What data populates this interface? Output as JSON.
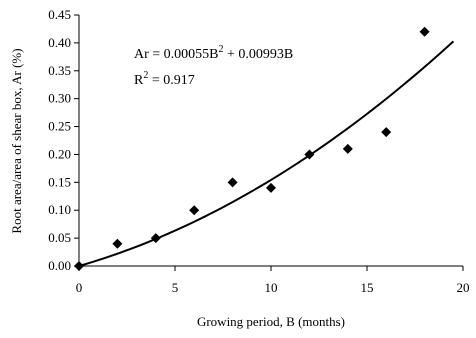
{
  "chart_data": {
    "type": "scatter",
    "xlabel": "Growing period, B (months)",
    "ylabel": "Root area/area of shear box, Ar (%)",
    "xlim": [
      0,
      20
    ],
    "ylim": [
      0,
      0.45
    ],
    "x_ticks": [
      "0",
      "5",
      "10",
      "15",
      "20"
    ],
    "y_ticks": [
      "0.00",
      "0.05",
      "0.10",
      "0.15",
      "0.20",
      "0.25",
      "0.30",
      "0.35",
      "0.40",
      "0.45"
    ],
    "grid": false,
    "marker": "diamond",
    "colors": {
      "marker": "#000000",
      "trendline": "#000000"
    },
    "series": [
      {
        "x": [
          0,
          2,
          4,
          6,
          8,
          10,
          12,
          14,
          16,
          18
        ],
        "y": [
          0.0,
          0.04,
          0.05,
          0.1,
          0.15,
          0.14,
          0.2,
          0.21,
          0.24,
          0.42
        ]
      }
    ],
    "trendline": {
      "type": "polynomial",
      "coefficients": {
        "a": 0.00055,
        "b": 0.00993,
        "c": 0
      },
      "x_range": [
        0,
        19.5
      ]
    },
    "annotations": {
      "equation_prefix": "Ar = 0.00055B",
      "equation_exp": "2",
      "equation_suffix": " + 0.00993B",
      "r2_prefix": "R",
      "r2_exp": "2",
      "r2_suffix": " = 0.917"
    }
  }
}
